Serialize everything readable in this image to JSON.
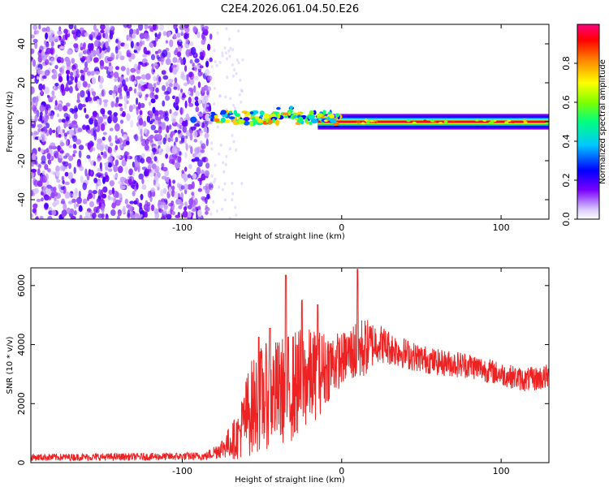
{
  "title": "C2E4.2026.061.04.50.E26",
  "chart_data": [
    {
      "type": "heatmap",
      "xlabel": "Height of straight line (km)",
      "ylabel": "Frequency (Hz)",
      "xlim": [
        -195,
        130
      ],
      "ylim": [
        -50,
        50
      ],
      "xticks": [
        -100,
        0,
        100
      ],
      "yticks": [
        -40,
        -20,
        0,
        20,
        40
      ],
      "xtick_labels": [
        "-100",
        "0",
        "100"
      ],
      "ytick_labels": [
        "-40",
        "-20",
        "0",
        "20",
        "40"
      ],
      "colorbar": {
        "label": "Normalized spectral amplitude",
        "range": [
          0,
          1
        ],
        "ticks": [
          0.0,
          0.2,
          0.4,
          0.6,
          0.8
        ],
        "tick_labels": [
          "0.0",
          "0.2",
          "0.4",
          "0.6",
          "0.8"
        ],
        "colormap": [
          "#c8b4ff",
          "#6a00ff",
          "#0000ff",
          "#00c8ff",
          "#00ff80",
          "#80ff00",
          "#ffff00",
          "#ff8000",
          "#ff0000",
          "#ff0080"
        ]
      },
      "regions": [
        {
          "name": "noise",
          "x_range": [
            -195,
            -82
          ],
          "freq_range": [
            -50,
            50
          ],
          "amplitude": 0.1
        },
        {
          "name": "onset",
          "x_range": [
            -100,
            -82
          ],
          "freq_center": 1,
          "amplitude": 0.3
        },
        {
          "name": "band",
          "x_range": [
            -82,
            -15
          ],
          "freq_center": 2,
          "freq_halfwidth": 3,
          "amplitude": 0.5
        },
        {
          "name": "carrier",
          "x_range": [
            -15,
            130
          ],
          "freq_center": 0,
          "freq_halfwidth": 1,
          "amplitude": 0.95
        }
      ]
    },
    {
      "type": "line",
      "xlabel": "Height of straight line (km)",
      "ylabel": "SNR (10 * v/v)",
      "xlim": [
        -195,
        130
      ],
      "ylim": [
        0,
        6600
      ],
      "xticks": [
        -100,
        0,
        100
      ],
      "yticks": [
        0,
        2000,
        4000,
        6000
      ],
      "xtick_labels": [
        "-100",
        "0",
        "100"
      ],
      "ytick_labels": [
        "0",
        "2000",
        "4000",
        "6000"
      ],
      "color": "#ee2222",
      "envelope": {
        "x": [
          -195,
          -120,
          -85,
          -75,
          -65,
          -58,
          -50,
          -40,
          -30,
          -25,
          -15,
          -8,
          0,
          5,
          10,
          15,
          22,
          30,
          45,
          60,
          80,
          100,
          115,
          130
        ],
        "y_mean": [
          180,
          200,
          220,
          500,
          900,
          1800,
          2200,
          2400,
          2600,
          2800,
          3000,
          3300,
          3500,
          3700,
          3800,
          3900,
          4100,
          3900,
          3600,
          3400,
          3300,
          3000,
          2800,
          2900
        ],
        "y_spread": [
          120,
          130,
          140,
          350,
          800,
          1600,
          1800,
          1800,
          1900,
          1800,
          1500,
          1200,
          900,
          900,
          1200,
          1000,
          700,
          600,
          500,
          450,
          450,
          400,
          400,
          450
        ]
      },
      "spikes": [
        {
          "x": -35,
          "y": 6350
        },
        {
          "x": 10,
          "y": 6550
        },
        {
          "x": -25,
          "y": 5500
        },
        {
          "x": -15,
          "y": 5350
        },
        {
          "x": -52,
          "y": 4250
        },
        {
          "x": -45,
          "y": 4550
        }
      ]
    }
  ]
}
